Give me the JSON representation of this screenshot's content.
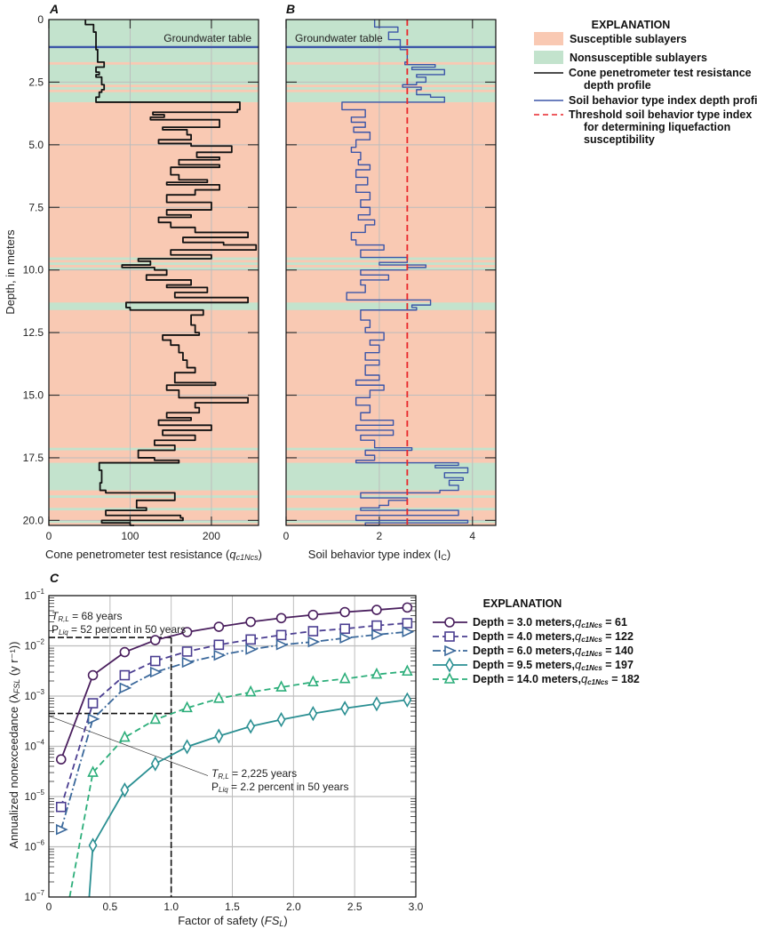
{
  "legend_top": {
    "title": "EXPLANATION",
    "items": [
      {
        "label": "Susceptible sublayers",
        "kind": "swatch",
        "color": "#f9c9b3"
      },
      {
        "label": "Nonsusceptible sublayers",
        "kind": "swatch",
        "color": "#c3e3cd"
      },
      {
        "label": "Cone penetrometer test resistance",
        "label2": "depth profile",
        "kind": "line",
        "color": "#111111"
      },
      {
        "label": "Soil behavior type index depth profile",
        "kind": "line",
        "color": "#3b55a8"
      },
      {
        "label": "Threshold soil behavior type index",
        "label2": "for determining liquefaction",
        "label3": "susceptibility",
        "kind": "dash",
        "color": "#e8262b"
      }
    ]
  },
  "legend_c": {
    "title": "EXPLANATION",
    "items": [
      {
        "text": "Depth = 3.0 meters,",
        "sym": "q",
        "sub": "c1Ncs",
        "val": " = 61"
      },
      {
        "text": "Depth = 4.0 meters,",
        "sym": "q",
        "sub": "c1Ncs",
        "val": " = 122"
      },
      {
        "text": "Depth = 6.0 meters,",
        "sym": "q",
        "sub": "c1Ncs",
        "val": " = 140"
      },
      {
        "text": "Depth = 9.5 meters,",
        "sym": "q",
        "sub": "c1Ncs",
        "val": " = 197"
      },
      {
        "text": "Depth = 14.0 meters,",
        "sym": "q",
        "sub": "c1Ncs",
        "val": " = 182"
      }
    ]
  },
  "colors": {
    "susceptible": "#f9c9b3",
    "nonsusceptible": "#c3e3cd",
    "groundwater": "#3b55a8",
    "threshold": "#e8262b",
    "grid": "#bdbdbd"
  },
  "chart_data": [
    {
      "panel": "A",
      "type": "line",
      "xlabel": "Cone penetrometer test resistance (",
      "xlabel_sym": "q",
      "xlabel_sub": "c1Ncs",
      "xlabel_end": ")",
      "ylabel": "Depth, in meters",
      "xlim": [
        0,
        258
      ],
      "ylim": [
        20.2,
        0
      ],
      "xticks": [
        0,
        100,
        200
      ],
      "yticks": [
        "0",
        "2.5",
        "5.0",
        "7.5",
        "10.0",
        "12.5",
        "15.0",
        "17.5",
        "20.0"
      ],
      "grid": true,
      "groundwater_depth": 1.1,
      "groundwater_label": "Groundwater table",
      "nonsusceptible_layers": [
        [
          0,
          1.7
        ],
        [
          1.8,
          2.6
        ],
        [
          2.7,
          2.8
        ],
        [
          2.9,
          3.3
        ],
        [
          9.5,
          9.6
        ],
        [
          9.7,
          9.8
        ],
        [
          9.9,
          10.0
        ],
        [
          11.3,
          11.6
        ],
        [
          17.1,
          17.2
        ],
        [
          17.7,
          18.8
        ],
        [
          19.0,
          19.1
        ],
        [
          19.5,
          19.6
        ],
        [
          20.0,
          20.1
        ]
      ],
      "profile": [
        [
          0,
          45
        ],
        [
          0.2,
          55
        ],
        [
          0.5,
          58
        ],
        [
          1.2,
          60
        ],
        [
          1.7,
          68
        ],
        [
          1.9,
          58
        ],
        [
          2.1,
          62
        ],
        [
          2.2,
          58
        ],
        [
          2.3,
          65
        ],
        [
          2.6,
          68
        ],
        [
          2.8,
          65
        ],
        [
          2.9,
          62
        ],
        [
          3.1,
          58
        ],
        [
          3.3,
          235
        ],
        [
          3.6,
          232
        ],
        [
          3.7,
          128
        ],
        [
          3.8,
          142
        ],
        [
          3.9,
          125
        ],
        [
          4.0,
          210
        ],
        [
          4.3,
          140
        ],
        [
          4.4,
          170
        ],
        [
          4.6,
          175
        ],
        [
          4.8,
          135
        ],
        [
          4.95,
          175
        ],
        [
          5.05,
          225
        ],
        [
          5.3,
          182
        ],
        [
          5.5,
          210
        ],
        [
          5.6,
          160
        ],
        [
          5.8,
          210
        ],
        [
          5.9,
          150
        ],
        [
          6.2,
          160
        ],
        [
          6.4,
          195
        ],
        [
          6.5,
          145
        ],
        [
          6.6,
          210
        ],
        [
          6.8,
          180
        ],
        [
          7.0,
          145
        ],
        [
          7.3,
          200
        ],
        [
          7.6,
          145
        ],
        [
          7.8,
          175
        ],
        [
          7.9,
          135
        ],
        [
          8.1,
          150
        ],
        [
          8.3,
          180
        ],
        [
          8.5,
          245
        ],
        [
          8.7,
          165
        ],
        [
          8.9,
          215
        ],
        [
          9.0,
          255
        ],
        [
          9.2,
          150
        ],
        [
          9.4,
          200
        ],
        [
          9.55,
          110
        ],
        [
          9.65,
          125
        ],
        [
          9.8,
          90
        ],
        [
          9.9,
          130
        ],
        [
          10.0,
          145
        ],
        [
          10.2,
          120
        ],
        [
          10.4,
          175
        ],
        [
          10.6,
          145
        ],
        [
          10.7,
          195
        ],
        [
          10.9,
          155
        ],
        [
          11.1,
          245
        ],
        [
          11.3,
          95
        ],
        [
          11.5,
          100
        ],
        [
          11.6,
          190
        ],
        [
          11.8,
          175
        ],
        [
          12.2,
          180
        ],
        [
          12.5,
          185
        ],
        [
          12.6,
          140
        ],
        [
          12.8,
          150
        ],
        [
          13.0,
          160
        ],
        [
          13.3,
          165
        ],
        [
          13.6,
          170
        ],
        [
          13.9,
          180
        ],
        [
          14.1,
          155
        ],
        [
          14.5,
          205
        ],
        [
          14.6,
          145
        ],
        [
          14.8,
          160
        ],
        [
          15.1,
          245
        ],
        [
          15.3,
          180
        ],
        [
          15.5,
          185
        ],
        [
          15.7,
          145
        ],
        [
          15.9,
          175
        ],
        [
          16.0,
          135
        ],
        [
          16.2,
          200
        ],
        [
          16.4,
          140
        ],
        [
          16.6,
          180
        ],
        [
          16.8,
          130
        ],
        [
          17.0,
          155
        ],
        [
          17.2,
          110
        ],
        [
          17.5,
          130
        ],
        [
          17.6,
          160
        ],
        [
          17.7,
          62
        ],
        [
          18.0,
          65
        ],
        [
          18.5,
          63
        ],
        [
          18.8,
          70
        ],
        [
          18.9,
          155
        ],
        [
          19.2,
          108
        ],
        [
          19.5,
          120
        ],
        [
          19.6,
          70
        ],
        [
          19.8,
          162
        ],
        [
          19.9,
          165
        ],
        [
          20.0,
          65
        ],
        [
          20.1,
          100
        ],
        [
          20.2,
          105
        ]
      ]
    },
    {
      "panel": "B",
      "type": "line",
      "xlabel": "Soil behavior type index (I",
      "xlabel_sub": "C",
      "xlabel_end": ")",
      "xlim": [
        0,
        4.5
      ],
      "ylim": [
        20.2,
        0
      ],
      "xticks": [
        0,
        2,
        4
      ],
      "grid": true,
      "threshold": 2.6,
      "groundwater_depth": 1.1,
      "groundwater_label": "Groundwater table",
      "profile": [
        [
          0,
          1.9
        ],
        [
          0.3,
          2.4
        ],
        [
          0.5,
          2.2
        ],
        [
          0.8,
          2.45
        ],
        [
          1.2,
          2.6
        ],
        [
          1.5,
          2.6
        ],
        [
          1.7,
          2.55
        ],
        [
          1.8,
          3.2
        ],
        [
          1.9,
          2.7
        ],
        [
          2.0,
          3.4
        ],
        [
          2.2,
          2.8
        ],
        [
          2.3,
          3.0
        ],
        [
          2.5,
          2.8
        ],
        [
          2.6,
          2.5
        ],
        [
          2.7,
          2.9
        ],
        [
          2.8,
          2.8
        ],
        [
          3.0,
          3.1
        ],
        [
          3.1,
          3.4
        ],
        [
          3.3,
          1.2
        ],
        [
          3.6,
          1.7
        ],
        [
          3.9,
          1.4
        ],
        [
          4.1,
          1.7
        ],
        [
          4.3,
          1.45
        ],
        [
          4.5,
          1.8
        ],
        [
          4.8,
          1.5
        ],
        [
          5.1,
          1.4
        ],
        [
          5.3,
          1.6
        ],
        [
          5.6,
          1.55
        ],
        [
          5.8,
          1.8
        ],
        [
          6.0,
          1.5
        ],
        [
          6.3,
          1.75
        ],
        [
          6.6,
          1.5
        ],
        [
          6.9,
          1.8
        ],
        [
          7.2,
          1.6
        ],
        [
          7.5,
          1.8
        ],
        [
          7.8,
          1.55
        ],
        [
          8.0,
          1.9
        ],
        [
          8.2,
          1.7
        ],
        [
          8.5,
          1.4
        ],
        [
          8.8,
          1.5
        ],
        [
          9.0,
          2.1
        ],
        [
          9.2,
          1.6
        ],
        [
          9.5,
          2.6
        ],
        [
          9.7,
          2.0
        ],
        [
          9.8,
          3.0
        ],
        [
          9.9,
          2.6
        ],
        [
          10.0,
          1.6
        ],
        [
          10.2,
          2.2
        ],
        [
          10.4,
          1.6
        ],
        [
          10.6,
          1.7
        ],
        [
          10.9,
          1.3
        ],
        [
          11.2,
          3.1
        ],
        [
          11.4,
          2.7
        ],
        [
          11.5,
          2.8
        ],
        [
          11.6,
          1.6
        ],
        [
          12.0,
          1.8
        ],
        [
          12.3,
          1.7
        ],
        [
          12.5,
          2.1
        ],
        [
          12.8,
          1.8
        ],
        [
          13.0,
          2.0
        ],
        [
          13.3,
          1.7
        ],
        [
          13.6,
          2.0
        ],
        [
          13.8,
          1.7
        ],
        [
          14.2,
          2.0
        ],
        [
          14.4,
          1.5
        ],
        [
          14.6,
          2.1
        ],
        [
          14.8,
          1.8
        ],
        [
          15.1,
          1.5
        ],
        [
          15.4,
          1.8
        ],
        [
          15.7,
          1.6
        ],
        [
          16.0,
          2.3
        ],
        [
          16.2,
          1.5
        ],
        [
          16.4,
          2.3
        ],
        [
          16.6,
          1.6
        ],
        [
          16.8,
          1.9
        ],
        [
          17.1,
          2.7
        ],
        [
          17.2,
          1.7
        ],
        [
          17.4,
          1.9
        ],
        [
          17.6,
          1.5
        ],
        [
          17.7,
          3.7
        ],
        [
          17.8,
          3.2
        ],
        [
          17.9,
          3.9
        ],
        [
          18.1,
          3.4
        ],
        [
          18.3,
          3.8
        ],
        [
          18.4,
          3.5
        ],
        [
          18.6,
          3.7
        ],
        [
          18.8,
          3.3
        ],
        [
          18.9,
          1.6
        ],
        [
          19.1,
          2.6
        ],
        [
          19.2,
          2.2
        ],
        [
          19.4,
          2.0
        ],
        [
          19.5,
          1.6
        ],
        [
          19.6,
          3.7
        ],
        [
          19.8,
          1.5
        ],
        [
          20.0,
          3.9
        ],
        [
          20.1,
          1.7
        ],
        [
          20.2,
          2.0
        ]
      ]
    },
    {
      "panel": "C",
      "type": "line",
      "xlabel": "Factor of safety (",
      "xlabel_sym": "FS",
      "xlabel_sub": "L",
      "xlabel_end": ")",
      "ylabel": "Annualized nonexceedance (λ",
      "ylabel_sub": "FSL",
      "ylabel_end": " (y r⁻¹))",
      "xlim": [
        0,
        3.0
      ],
      "ylim": [
        1e-07,
        0.1
      ],
      "yscale": "log",
      "xticks": [
        "0",
        "0.5",
        "1.0",
        "1.5",
        "2.0",
        "2.5",
        "3.0"
      ],
      "yticks": [
        -1,
        -2,
        -3,
        -4,
        -5,
        -6,
        -7
      ],
      "grid": true,
      "x": [
        0.1,
        0.36,
        0.62,
        0.87,
        1.13,
        1.39,
        1.65,
        1.9,
        2.16,
        2.42,
        2.68,
        2.93
      ],
      "series": [
        {
          "name": "Depth = 3.0 meters, qc1Ncs = 61",
          "color": "#4a1f5e",
          "marker": "circle",
          "dash": "solid",
          "values": [
            5.5e-05,
            0.0026,
            0.0075,
            0.013,
            0.0188,
            0.024,
            0.03,
            0.0357,
            0.0414,
            0.047,
            0.052,
            0.058
          ]
        },
        {
          "name": "Depth = 4.0 meters, qc1Ncs = 122",
          "color": "#4b3e91",
          "marker": "square",
          "dash": "dashed",
          "values": [
            6.2e-06,
            0.00072,
            0.0026,
            0.005,
            0.0077,
            0.0105,
            0.0134,
            0.0164,
            0.0196,
            0.0219,
            0.0254,
            0.0283
          ]
        },
        {
          "name": "Depth = 6.0 meters, qc1Ncs = 140",
          "color": "#3a689b",
          "marker": "triangle-right",
          "dash": "dashdot",
          "values": [
            2.2e-06,
            0.00035,
            0.00145,
            0.003,
            0.0047,
            0.0065,
            0.0085,
            0.0105,
            0.012,
            0.0143,
            0.0167,
            0.019
          ]
        },
        {
          "name": "Depth = 9.5 meters, qc1Ncs = 197",
          "color": "#2a8f92",
          "marker": "diamond",
          "dash": "solid",
          "start": [
            0.33,
            1e-07
          ],
          "values": [
            null,
            1.07e-06,
            1.35e-05,
            4.5e-05,
            9.8e-05,
            0.00016,
            0.00025,
            0.00034,
            0.00045,
            0.00057,
            0.0007,
            0.00084
          ]
        },
        {
          "name": "Depth = 14.0 meters, qc1Ncs = 182",
          "color": "#2cae7a",
          "marker": "triangle-up",
          "dash": "dashed",
          "start": [
            0.17,
            1e-07
          ],
          "values": [
            null,
            3e-05,
            0.00015,
            0.00034,
            0.00058,
            0.00089,
            0.0012,
            0.0015,
            0.0019,
            0.0022,
            0.0027,
            0.0031
          ]
        }
      ],
      "reference_fs": 1.0,
      "reference_levels": [
        0.0147,
        0.00045
      ],
      "annotations": [
        {
          "t_sym": "T",
          "t_sub": "R,L",
          "t_text": " = 68 years",
          "p_sym": "P",
          "p_sub": "Liq",
          "p_text": " = 52 percent in 50 years",
          "color": "#5b3a7c"
        },
        {
          "t_sym": "T",
          "t_sub": "R,L",
          "t_text": " = 2,225 years",
          "p_sym": "P",
          "p_sub": "Liq",
          "p_text": " = 2.2 percent in 50 years",
          "color": "#2cae7a"
        }
      ]
    }
  ],
  "panel_labels": [
    "A",
    "B",
    "C"
  ]
}
